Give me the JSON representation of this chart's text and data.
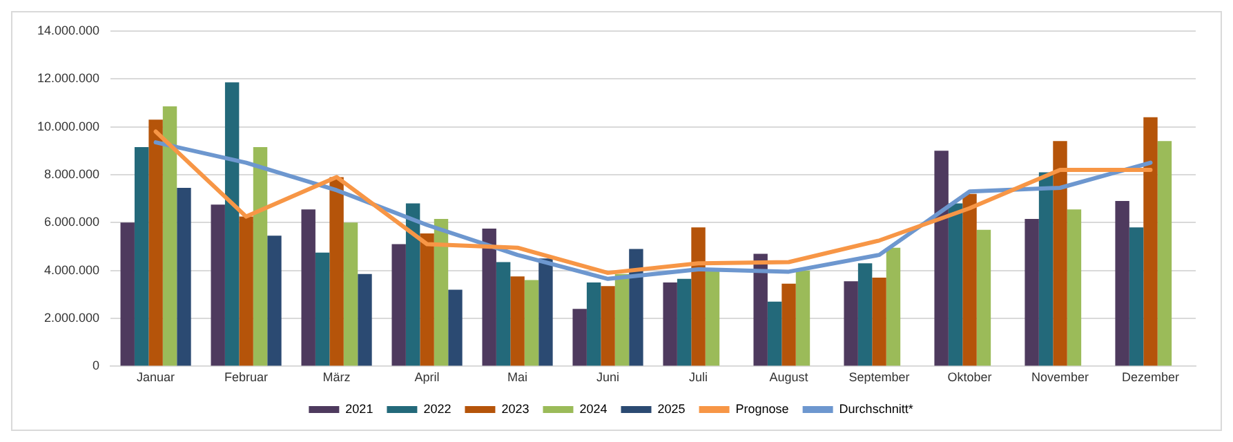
{
  "chart_data": {
    "type": "bar",
    "categories": [
      "Januar",
      "Februar",
      "März",
      "April",
      "Mai",
      "Juni",
      "Juli",
      "August",
      "September",
      "Oktober",
      "November",
      "Dezember"
    ],
    "series": [
      {
        "name": "2021",
        "color": "#4e3a5e",
        "values": [
          6000000,
          6750000,
          6550000,
          5100000,
          5750000,
          2400000,
          3500000,
          4700000,
          3550000,
          9000000,
          6150000,
          6900000
        ]
      },
      {
        "name": "2022",
        "color": "#23697a",
        "values": [
          9150000,
          11850000,
          4750000,
          6800000,
          4350000,
          3500000,
          3650000,
          2700000,
          4300000,
          6800000,
          8100000,
          5800000
        ]
      },
      {
        "name": "2023",
        "color": "#b5540a",
        "values": [
          10300000,
          6250000,
          7900000,
          5550000,
          3750000,
          3350000,
          5800000,
          3450000,
          3700000,
          7200000,
          9400000,
          10400000
        ]
      },
      {
        "name": "2024",
        "color": "#9bbb59",
        "values": [
          10850000,
          9150000,
          6000000,
          6150000,
          3600000,
          3850000,
          4050000,
          4000000,
          4950000,
          5700000,
          6550000,
          9400000
        ]
      },
      {
        "name": "2025",
        "color": "#2b4a72",
        "values": [
          7450000,
          5450000,
          3850000,
          3200000,
          4500000,
          4900000,
          null,
          null,
          null,
          null,
          null,
          null
        ]
      },
      {
        "name": "Prognose",
        "type": "line",
        "color": "#f79646",
        "values": [
          9800000,
          6250000,
          7900000,
          5100000,
          4950000,
          3900000,
          4300000,
          4350000,
          5250000,
          6600000,
          8200000,
          8200000
        ]
      },
      {
        "name": "Durchschnitt*",
        "type": "line",
        "color": "#6d97cf",
        "values": [
          9350000,
          8500000,
          7350000,
          5900000,
          4650000,
          3650000,
          4050000,
          3950000,
          4650000,
          7300000,
          7450000,
          8500000
        ]
      }
    ],
    "ylim": [
      0,
      14000000
    ],
    "yticks": [
      {
        "value": 0,
        "label": "0"
      },
      {
        "value": 2000000,
        "label": "2.000.000"
      },
      {
        "value": 4000000,
        "label": "4.000.000"
      },
      {
        "value": 6000000,
        "label": "6.000.000"
      },
      {
        "value": 8000000,
        "label": "8.000.000"
      },
      {
        "value": 10000000,
        "label": "10.000.000"
      },
      {
        "value": 12000000,
        "label": "12.000.000"
      },
      {
        "value": 14000000,
        "label": "14.000.000"
      }
    ],
    "grid": "y",
    "legend": "bottom",
    "marker": "none",
    "line_style": "solid"
  }
}
